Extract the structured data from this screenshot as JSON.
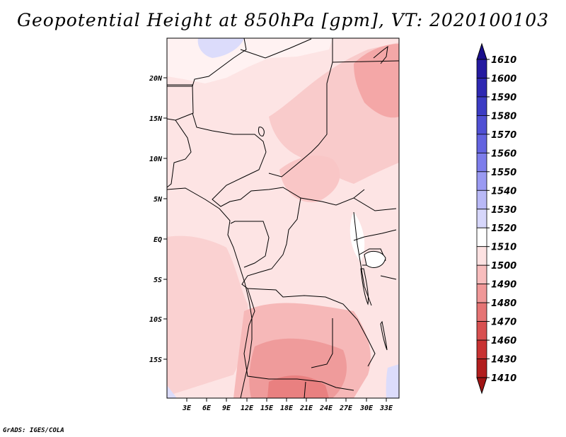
{
  "title": "Geopotential Height at 850hPa [gpm], VT: 2020100103",
  "credit": "GrADS: IGES/COLA",
  "map": {
    "lat_labels": [
      "20N",
      "15N",
      "10N",
      "5N",
      "EQ",
      "5S",
      "10S",
      "15S"
    ],
    "lon_labels": [
      "3E",
      "6E",
      "9E",
      "12E",
      "15E",
      "18E",
      "21E",
      "24E",
      "27E",
      "30E",
      "33E"
    ]
  },
  "colorbar": {
    "labels": [
      "1610",
      "1600",
      "1590",
      "1580",
      "1570",
      "1560",
      "1550",
      "1540",
      "1530",
      "1520",
      "1510",
      "1500",
      "1490",
      "1480",
      "1470",
      "1460",
      "1430",
      "1410"
    ],
    "colors": [
      "#1a0f8c",
      "#241aa0",
      "#2e28b2",
      "#3c3cc4",
      "#5050d4",
      "#6464e0",
      "#7d7deb",
      "#9a9af2",
      "#b9b9f7",
      "#d7d7fb",
      "#ffffff",
      "#fde2e2",
      "#f8bdbd",
      "#f09898",
      "#e57474",
      "#d85050",
      "#c83232",
      "#b21e1e",
      "#a01414"
    ],
    "unit": "gpm"
  }
}
